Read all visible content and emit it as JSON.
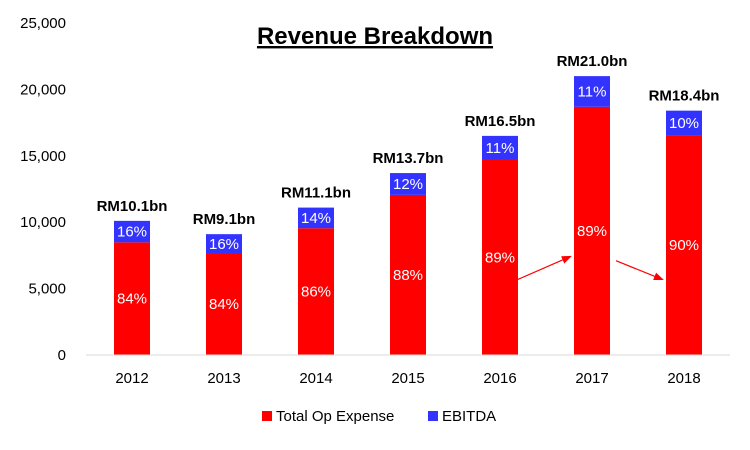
{
  "chart_data": {
    "type": "bar",
    "stacked": true,
    "title": "Revenue Breakdown",
    "categories": [
      "2012",
      "2013",
      "2014",
      "2015",
      "2016",
      "2017",
      "2018"
    ],
    "series": [
      {
        "name": "Total Op Expense",
        "color": "#FF0000",
        "values": [
          8484,
          7644,
          9546,
          12056,
          14685,
          18690,
          16560
        ],
        "labels": [
          "84%",
          "84%",
          "86%",
          "88%",
          "89%",
          "89%",
          "90%"
        ]
      },
      {
        "name": "EBITDA",
        "color": "#3333FF",
        "values": [
          1616,
          1456,
          1554,
          1644,
          1815,
          2310,
          1840
        ],
        "labels": [
          "16%",
          "16%",
          "14%",
          "12%",
          "11%",
          "11%",
          "10%"
        ]
      }
    ],
    "totals": [
      "RM10.1bn",
      "RM9.1bn",
      "RM11.1bn",
      "RM13.7bn",
      "RM16.5bn",
      "RM21.0bn",
      "RM18.4bn"
    ],
    "ylim": [
      0,
      25000
    ],
    "yticks": [
      0,
      5000,
      10000,
      15000,
      20000,
      25000
    ],
    "ytick_labels": [
      "0",
      "5,000",
      "10,000",
      "15,000",
      "20,000",
      "25,000"
    ],
    "xlabel": "",
    "ylabel": "",
    "legend": "bottom",
    "grid": false,
    "annotations": [
      {
        "type": "arrow",
        "color": "#FF0000",
        "from_bar": "2016",
        "to_bar": "2017"
      },
      {
        "type": "arrow",
        "color": "#FF0000",
        "from_bar": "2017",
        "to_bar": "2018"
      }
    ]
  }
}
